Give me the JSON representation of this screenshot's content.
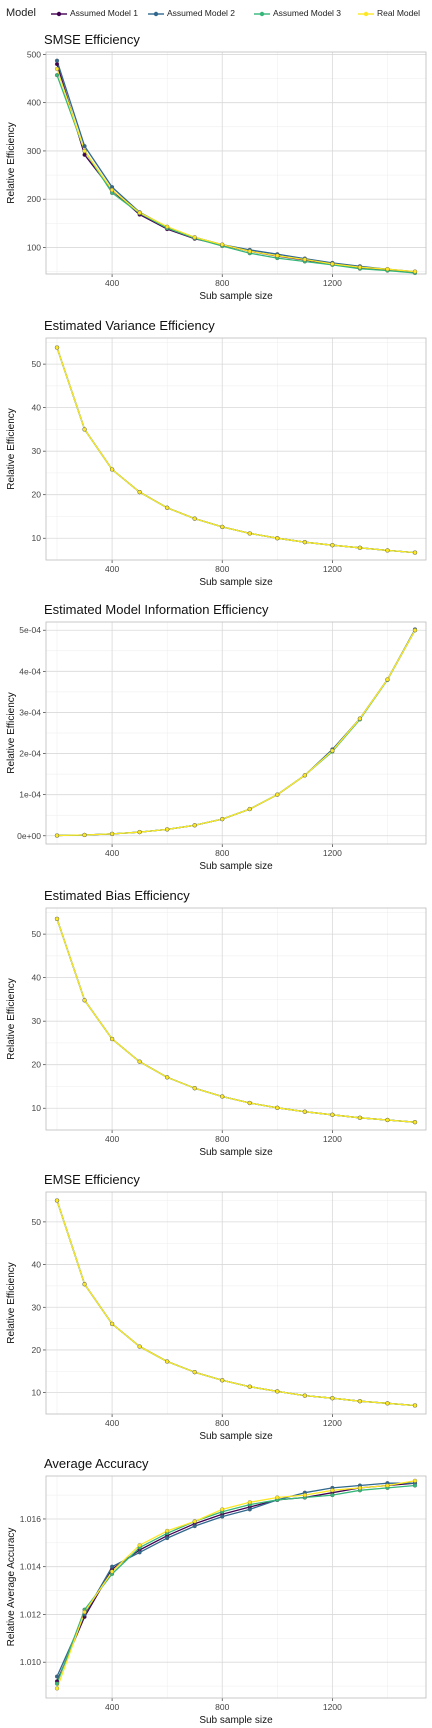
{
  "legend": {
    "title": "Model",
    "items": [
      {
        "label": "Assumed Model 1",
        "color": "#440154"
      },
      {
        "label": "Assumed Model 2",
        "color": "#31688e"
      },
      {
        "label": "Assumed Model 3",
        "color": "#35b779"
      },
      {
        "label": "Real Model",
        "color": "#fde725"
      }
    ]
  },
  "chart_data": [
    {
      "type": "line",
      "title": "SMSE Efficiency",
      "xlabel": "Sub sample size",
      "ylabel": "Relative Efficiency",
      "xlim": [
        160,
        1540
      ],
      "ylim": [
        45,
        505
      ],
      "xticks": [
        400,
        800,
        1200
      ],
      "xtick_labels": [
        "400",
        "800",
        "1200"
      ],
      "yticks": [
        100,
        200,
        300,
        400,
        500
      ],
      "ytick_labels": [
        "100",
        "200",
        "300",
        "400",
        "500"
      ],
      "grid": true,
      "x": [
        200,
        300,
        400,
        500,
        600,
        700,
        800,
        900,
        1000,
        1100,
        1200,
        1300,
        1400,
        1500
      ],
      "series": [
        {
          "name": "Assumed Model 1",
          "values": [
            480,
            292,
            218,
            168,
            138,
            118,
            105,
            92,
            82,
            74,
            65,
            58,
            54,
            48
          ]
        },
        {
          "name": "Assumed Model 2",
          "values": [
            487,
            310,
            225,
            173,
            142,
            121,
            106,
            95,
            86,
            77,
            68,
            61,
            55,
            50
          ]
        },
        {
          "name": "Assumed Model 3",
          "values": [
            457,
            300,
            213,
            171,
            140,
            119,
            103,
            88,
            78,
            71,
            64,
            56,
            52,
            47
          ]
        },
        {
          "name": "Real Model",
          "values": [
            470,
            300,
            219,
            172,
            143,
            121,
            106,
            92,
            83,
            75,
            66,
            59,
            55,
            50
          ]
        }
      ]
    },
    {
      "type": "line",
      "title": "Estimated Variance Efficiency",
      "xlabel": "Sub sample size",
      "ylabel": "Relative Efficiency",
      "xlim": [
        160,
        1540
      ],
      "ylim": [
        5,
        56
      ],
      "xticks": [
        400,
        800,
        1200
      ],
      "xtick_labels": [
        "400",
        "800",
        "1200"
      ],
      "yticks": [
        10,
        20,
        30,
        40,
        50
      ],
      "ytick_labels": [
        "10",
        "20",
        "30",
        "40",
        "50"
      ],
      "grid": true,
      "x": [
        200,
        300,
        400,
        500,
        600,
        700,
        800,
        900,
        1000,
        1100,
        1200,
        1300,
        1400,
        1500
      ],
      "series": [
        {
          "name": "Assumed Model 1",
          "values": [
            53.8,
            35.0,
            25.8,
            20.6,
            17.0,
            14.5,
            12.6,
            11.1,
            10.0,
            9.1,
            8.4,
            7.8,
            7.2,
            6.7
          ]
        },
        {
          "name": "Assumed Model 2",
          "values": [
            53.8,
            35.0,
            25.8,
            20.6,
            17.0,
            14.5,
            12.6,
            11.1,
            10.0,
            9.1,
            8.4,
            7.8,
            7.2,
            6.7
          ]
        },
        {
          "name": "Assumed Model 3",
          "values": [
            53.8,
            35.0,
            25.8,
            20.6,
            17.0,
            14.5,
            12.6,
            11.1,
            10.0,
            9.1,
            8.4,
            7.8,
            7.2,
            6.7
          ]
        },
        {
          "name": "Real Model",
          "values": [
            53.8,
            35.0,
            25.8,
            20.6,
            17.0,
            14.5,
            12.6,
            11.1,
            10.0,
            9.1,
            8.4,
            7.8,
            7.2,
            6.7
          ]
        }
      ]
    },
    {
      "type": "line",
      "title": "Estimated Model Information Efficiency",
      "xlabel": "Sub sample size",
      "ylabel": "Relative Efficiency",
      "xlim": [
        160,
        1540
      ],
      "ylim": [
        -2e-05,
        0.00052
      ],
      "xticks": [
        400,
        800,
        1200
      ],
      "xtick_labels": [
        "400",
        "800",
        "1200"
      ],
      "yticks": [
        0,
        0.0001,
        0.0002,
        0.0003,
        0.0004,
        0.0005
      ],
      "ytick_labels": [
        "0e+00",
        "1e-04",
        "2e-04",
        "3e-04",
        "4e-04",
        "5e-04"
      ],
      "grid": true,
      "x": [
        200,
        300,
        400,
        500,
        600,
        700,
        800,
        900,
        1000,
        1100,
        1200,
        1300,
        1400,
        1500
      ],
      "series": [
        {
          "name": "Assumed Model 1",
          "values": [
            6e-07,
            2e-06,
            4.6e-06,
            9e-06,
            1.55e-05,
            2.55e-05,
            4.05e-05,
            6.5e-05,
            0.0001,
            0.000147,
            0.000207,
            0.000285,
            0.00038,
            0.0005
          ]
        },
        {
          "name": "Assumed Model 2",
          "values": [
            6e-07,
            2e-06,
            4.6e-06,
            9e-06,
            1.55e-05,
            2.55e-05,
            4.05e-05,
            6.5e-05,
            0.0001,
            0.000147,
            0.00021,
            0.000285,
            0.00038,
            0.000502
          ]
        },
        {
          "name": "Assumed Model 3",
          "values": [
            6e-07,
            2e-06,
            4.6e-06,
            9e-06,
            1.55e-05,
            2.55e-05,
            4.05e-05,
            6.5e-05,
            0.0001,
            0.000147,
            0.000205,
            0.000283,
            0.000379,
            0.0005
          ]
        },
        {
          "name": "Real Model",
          "values": [
            6e-07,
            2e-06,
            4.6e-06,
            9e-06,
            1.55e-05,
            2.55e-05,
            4.05e-05,
            6.5e-05,
            0.0001,
            0.000147,
            0.000207,
            0.000285,
            0.00038,
            0.0005
          ]
        }
      ]
    },
    {
      "type": "line",
      "title": "Estimated Bias Efficiency",
      "xlabel": "Sub sample size",
      "ylabel": "Relative Efficiency",
      "xlim": [
        160,
        1540
      ],
      "ylim": [
        5,
        56
      ],
      "xticks": [
        400,
        800,
        1200
      ],
      "xtick_labels": [
        "400",
        "800",
        "1200"
      ],
      "yticks": [
        10,
        20,
        30,
        40,
        50
      ],
      "ytick_labels": [
        "10",
        "20",
        "30",
        "40",
        "50"
      ],
      "grid": true,
      "x": [
        200,
        300,
        400,
        500,
        600,
        700,
        800,
        900,
        1000,
        1100,
        1200,
        1300,
        1400,
        1500
      ],
      "series": [
        {
          "name": "Assumed Model 1",
          "values": [
            53.5,
            34.8,
            25.9,
            20.7,
            17.1,
            14.6,
            12.7,
            11.2,
            10.1,
            9.2,
            8.5,
            7.8,
            7.3,
            6.8
          ]
        },
        {
          "name": "Assumed Model 2",
          "values": [
            53.5,
            34.8,
            25.9,
            20.7,
            17.1,
            14.6,
            12.7,
            11.2,
            10.1,
            9.2,
            8.5,
            7.8,
            7.3,
            6.8
          ]
        },
        {
          "name": "Assumed Model 3",
          "values": [
            53.5,
            34.8,
            25.9,
            20.7,
            17.1,
            14.6,
            12.7,
            11.2,
            10.1,
            9.2,
            8.5,
            7.8,
            7.3,
            6.8
          ]
        },
        {
          "name": "Real Model",
          "values": [
            53.5,
            34.8,
            25.9,
            20.7,
            17.1,
            14.6,
            12.7,
            11.2,
            10.1,
            9.2,
            8.5,
            7.8,
            7.3,
            6.8
          ]
        }
      ]
    },
    {
      "type": "line",
      "title": "EMSE Efficiency",
      "xlabel": "Sub sample size",
      "ylabel": "Relative Efficiency",
      "xlim": [
        160,
        1540
      ],
      "ylim": [
        5,
        57
      ],
      "xticks": [
        400,
        800,
        1200
      ],
      "xtick_labels": [
        "400",
        "800",
        "1200"
      ],
      "yticks": [
        10,
        20,
        30,
        40,
        50
      ],
      "ytick_labels": [
        "10",
        "20",
        "30",
        "40",
        "50"
      ],
      "grid": true,
      "x": [
        200,
        300,
        400,
        500,
        600,
        700,
        800,
        900,
        1000,
        1100,
        1200,
        1300,
        1400,
        1500
      ],
      "series": [
        {
          "name": "Assumed Model 1",
          "values": [
            55.0,
            35.4,
            26.1,
            20.8,
            17.3,
            14.8,
            12.9,
            11.4,
            10.3,
            9.3,
            8.7,
            8.0,
            7.5,
            7.0
          ]
        },
        {
          "name": "Assumed Model 2",
          "values": [
            55.0,
            35.4,
            26.1,
            20.8,
            17.3,
            14.8,
            12.9,
            11.4,
            10.3,
            9.3,
            8.7,
            8.0,
            7.5,
            7.0
          ]
        },
        {
          "name": "Assumed Model 3",
          "values": [
            55.0,
            35.4,
            26.1,
            20.8,
            17.3,
            14.8,
            12.9,
            11.4,
            10.3,
            9.3,
            8.7,
            8.0,
            7.5,
            7.0
          ]
        },
        {
          "name": "Real Model",
          "values": [
            55.0,
            35.4,
            26.1,
            20.8,
            17.3,
            14.8,
            12.9,
            11.4,
            10.3,
            9.3,
            8.7,
            8.0,
            7.5,
            7.0
          ]
        }
      ]
    },
    {
      "type": "line",
      "title": "Average Accuracy",
      "xlabel": "Sub sample size",
      "ylabel": "Relative Average Accuracy",
      "xlim": [
        160,
        1540
      ],
      "ylim": [
        1.0085,
        1.0178
      ],
      "xticks": [
        400,
        800,
        1200
      ],
      "xtick_labels": [
        "400",
        "800",
        "1200"
      ],
      "yticks": [
        1.01,
        1.012,
        1.014,
        1.016
      ],
      "ytick_labels": [
        "1.010",
        "1.012",
        "1.014",
        "1.016"
      ],
      "grid": true,
      "x": [
        200,
        300,
        400,
        500,
        600,
        700,
        800,
        900,
        1000,
        1100,
        1200,
        1300,
        1400,
        1500
      ],
      "series": [
        {
          "name": "Assumed Model 1",
          "values": [
            1.0092,
            1.0119,
            1.0139,
            1.0147,
            1.0153,
            1.0158,
            1.0162,
            1.0165,
            1.0168,
            1.0169,
            1.0171,
            1.0173,
            1.0174,
            1.0175
          ]
        },
        {
          "name": "Assumed Model 2",
          "values": [
            1.0094,
            1.012,
            1.014,
            1.0146,
            1.0152,
            1.0157,
            1.0161,
            1.0164,
            1.0168,
            1.0171,
            1.0173,
            1.0174,
            1.0175,
            1.0175
          ]
        },
        {
          "name": "Assumed Model 3",
          "values": [
            1.0091,
            1.0122,
            1.0137,
            1.0148,
            1.0154,
            1.0159,
            1.0163,
            1.0166,
            1.0168,
            1.0169,
            1.017,
            1.0172,
            1.0173,
            1.0174
          ]
        },
        {
          "name": "Real Model",
          "values": [
            1.0089,
            1.0121,
            1.0138,
            1.0149,
            1.0155,
            1.0159,
            1.0164,
            1.0167,
            1.0169,
            1.017,
            1.0172,
            1.0173,
            1.0174,
            1.0176
          ]
        }
      ]
    }
  ]
}
